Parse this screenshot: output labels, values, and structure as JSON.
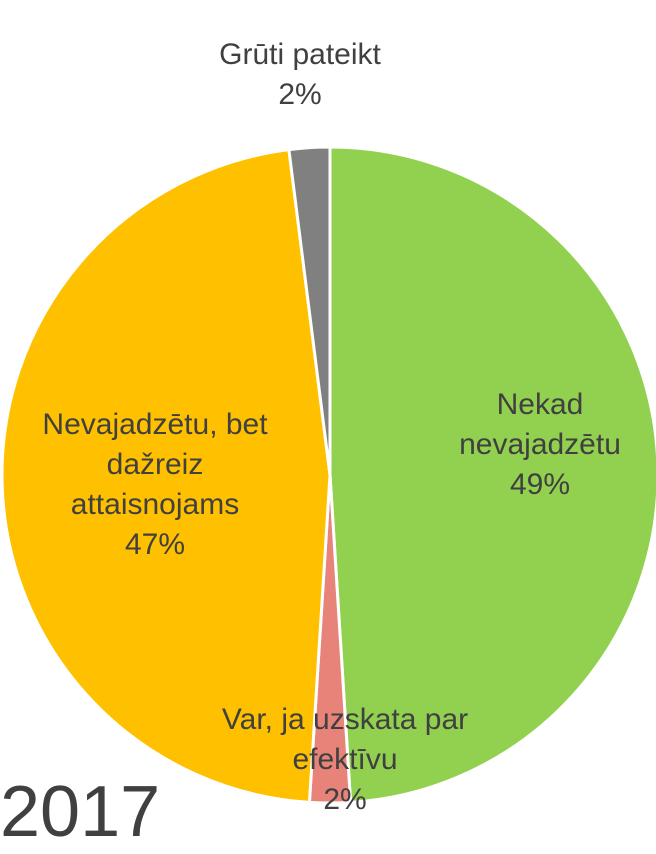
{
  "chart_data": {
    "type": "pie",
    "title": "2017",
    "categories": [
      "Nekad nevajadzētu",
      "Var, ja uzskata par efektīvu",
      "Nevajadzētu, bet dažreiz attaisnojams",
      "Grūti pateikt"
    ],
    "values": [
      49,
      2,
      47,
      2
    ],
    "value_labels": [
      "49%",
      "2%",
      "47%",
      "2%"
    ],
    "colors": [
      "#92d050",
      "#e8837a",
      "#ffc000",
      "#808080"
    ]
  }
}
